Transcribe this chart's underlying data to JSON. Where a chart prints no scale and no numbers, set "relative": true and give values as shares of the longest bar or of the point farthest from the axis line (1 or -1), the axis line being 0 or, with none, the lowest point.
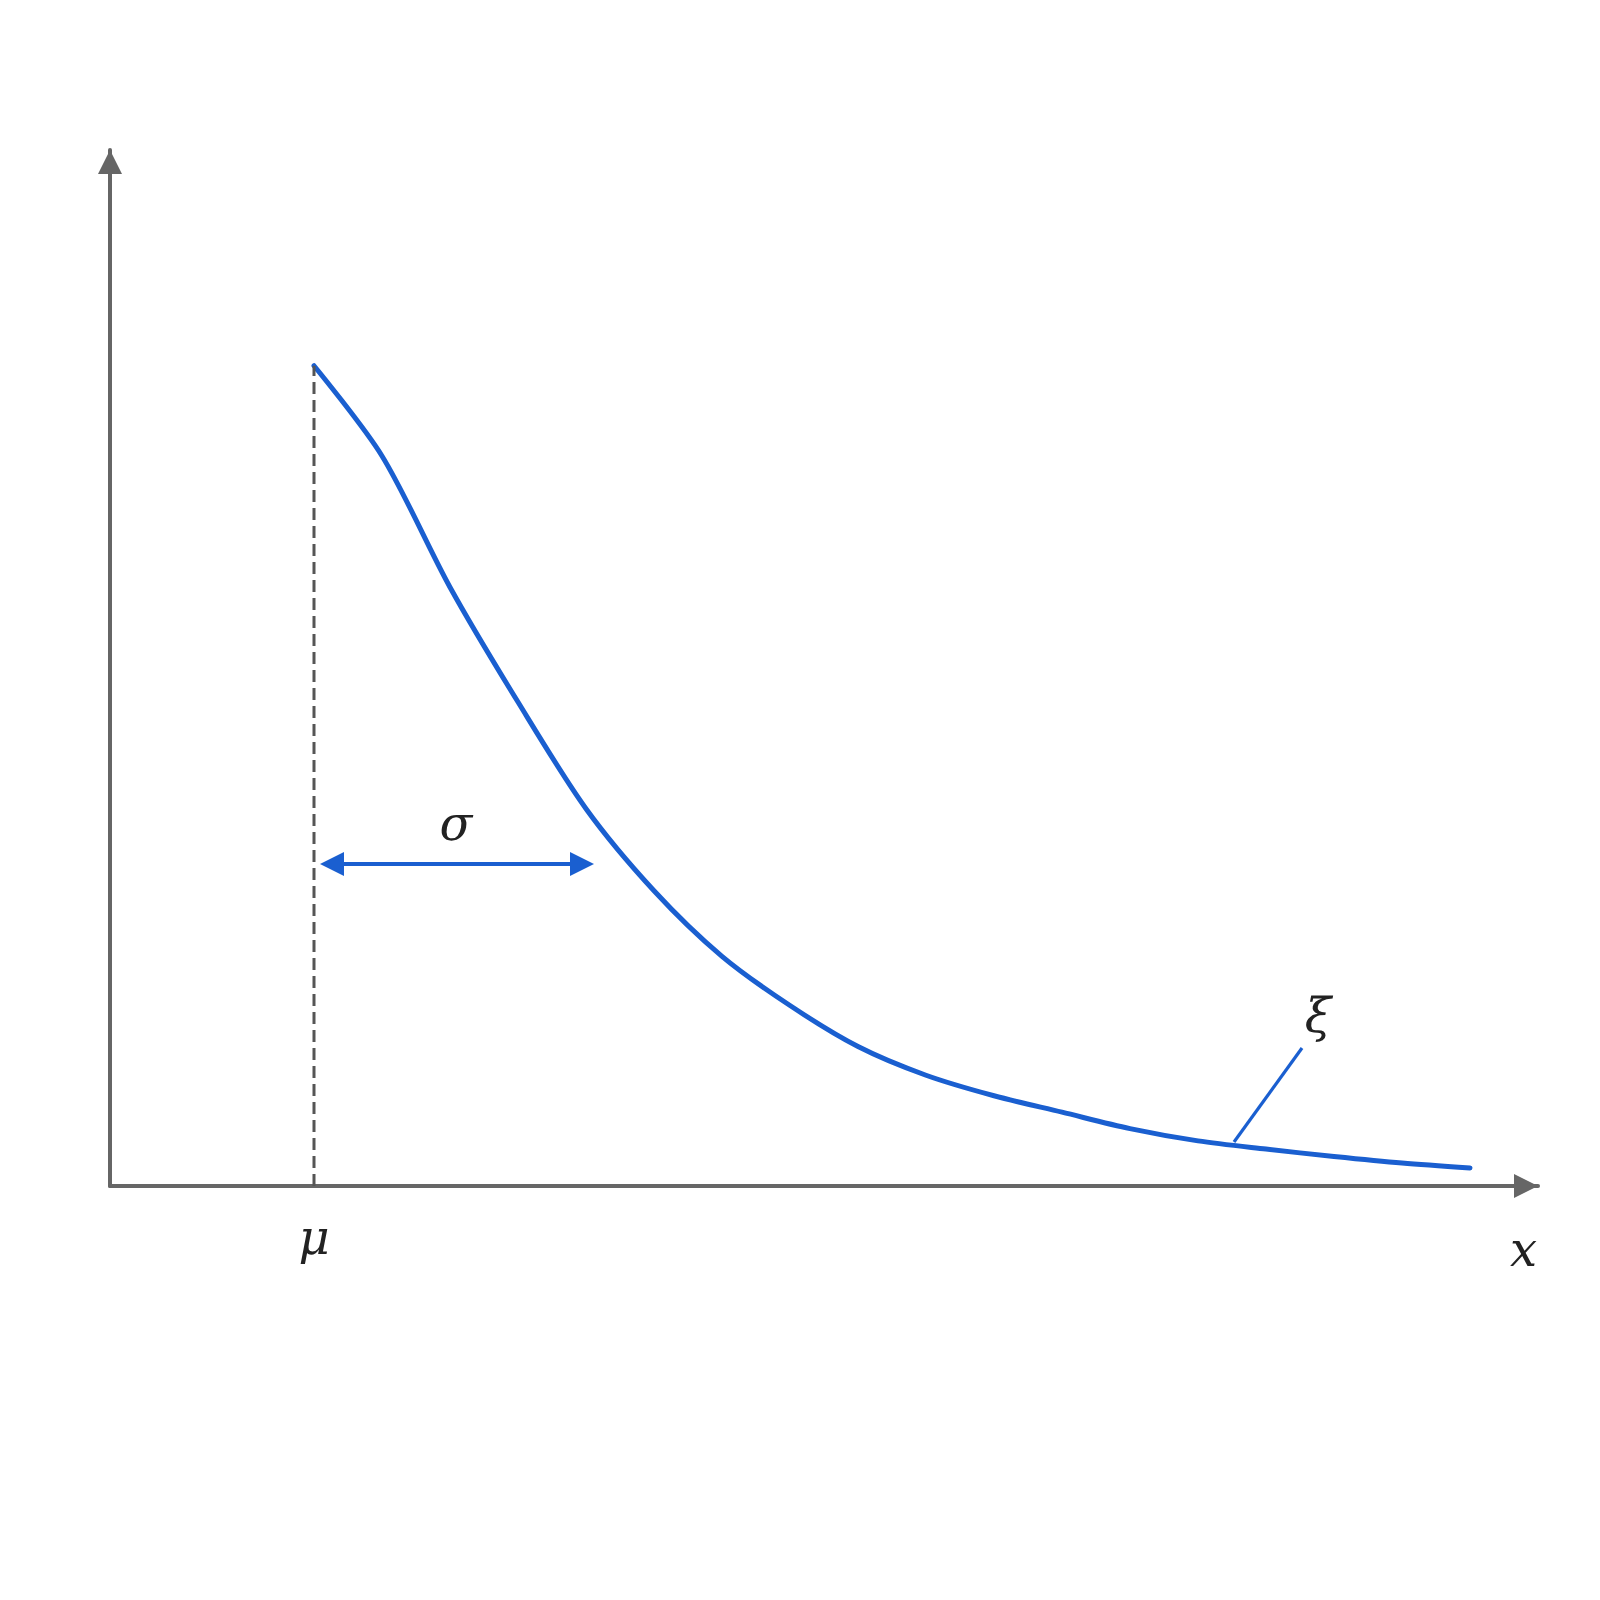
{
  "chart_data": {
    "type": "line",
    "relative": true,
    "xlabel": "x",
    "categories": [
      null,
      null,
      null,
      null,
      null,
      null,
      null,
      null,
      null,
      null,
      null,
      null,
      null,
      null,
      null,
      null,
      null,
      null,
      null,
      null,
      null,
      null
    ],
    "series": [
      {
        "color": "#1a5fd0",
        "values": [
          null,
          null,
          null,
          1.0,
          0.89,
          0.73,
          0.59,
          0.46,
          0.36,
          0.28,
          0.22,
          0.17,
          0.135,
          0.11,
          0.09,
          0.07,
          0.055,
          0.045,
          0.036,
          0.028,
          0.022,
          null
        ]
      }
    ],
    "ref_lines": [
      {
        "axis": "x",
        "label": "μ",
        "color": "#555555",
        "line_style": "dashed"
      }
    ],
    "annotations": [
      "σ",
      "ξ"
    ],
    "marker": "none",
    "line_style": "solid",
    "grid": false
  }
}
